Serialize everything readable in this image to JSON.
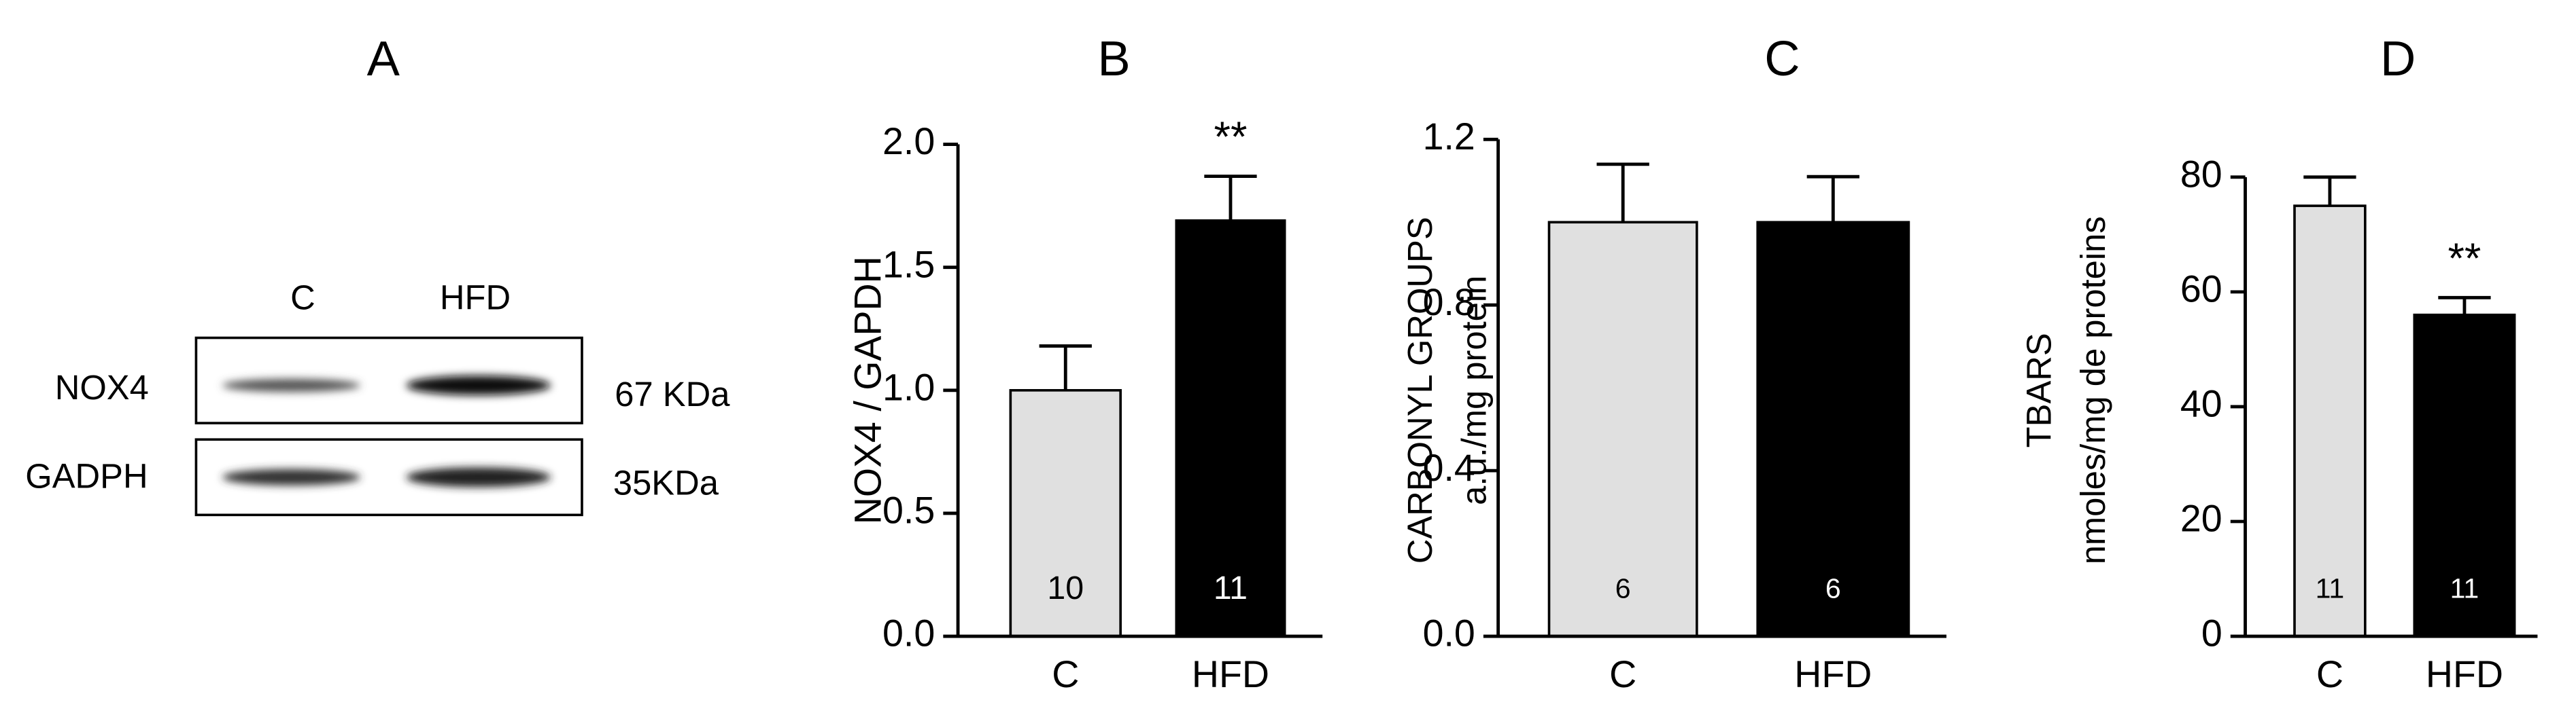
{
  "blot": {
    "title": "A",
    "lanes": [
      "C",
      "HFD"
    ],
    "rows": [
      {
        "label": "NOX4",
        "size": "67 KDa"
      },
      {
        "label": "GADPH",
        "size": "35KDa"
      }
    ]
  },
  "chart_data": [
    {
      "type": "bar",
      "title": "B",
      "ylabel": [
        "NOX4 / GAPDH"
      ],
      "categories": [
        "C",
        "HFD"
      ],
      "values": [
        1.0,
        1.69
      ],
      "errors": [
        0.18,
        0.18
      ],
      "n": [
        10,
        11
      ],
      "significance": [
        null,
        "**"
      ],
      "colors": [
        "#e0e0e0",
        "#000000"
      ],
      "ylim": [
        0,
        2.0
      ],
      "yticks": [
        {
          "value": 0,
          "label": "0.0"
        },
        {
          "value": 0.5,
          "label": "0.5"
        },
        {
          "value": 1,
          "label": "1.0"
        },
        {
          "value": 1.5,
          "label": "1.5"
        },
        {
          "value": 2,
          "label": "2.0"
        }
      ]
    },
    {
      "type": "bar",
      "title": "C",
      "ylabel": [
        "CARBONYL GROUPS",
        "a.u./mg protein"
      ],
      "categories": [
        "C",
        "HFD"
      ],
      "values": [
        1.0,
        1.0
      ],
      "errors": [
        0.14,
        0.11
      ],
      "n": [
        6,
        6
      ],
      "colors": [
        "#e0e0e0",
        "#000000"
      ],
      "ylim": [
        0,
        1.2
      ],
      "yticks": [
        {
          "value": 0,
          "label": "0.0"
        },
        0.4,
        0.8,
        1.2
      ]
    },
    {
      "type": "bar",
      "title": "D",
      "ylabel": [
        "TBARS",
        "nmoles/mg de proteins"
      ],
      "categories": [
        "C",
        "HFD"
      ],
      "values": [
        75,
        56
      ],
      "errors": [
        5,
        3
      ],
      "n": [
        11,
        11
      ],
      "significance": [
        null,
        "**"
      ],
      "colors": [
        "#e0e0e0",
        "#000000"
      ],
      "ylim": [
        0,
        80
      ],
      "yticks": [
        0,
        20,
        40,
        60,
        80
      ]
    }
  ]
}
